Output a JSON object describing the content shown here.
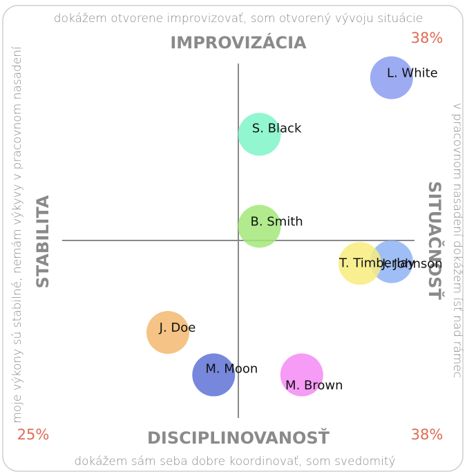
{
  "chart_data": {
    "type": "scatter",
    "annotations": {
      "top_text": "dokážem otvorene improvizovať, som otvorený vývoju situácie",
      "top_label": "IMPROVIZÁCIA",
      "bottom_label": "DISCIPLINOVANOSŤ",
      "bottom_text": "dokážem sám seba dobre koordinovať, som svedomitý",
      "left_label": "STABILITA",
      "left_text": "moje výkony sú stabilné, nemám výkyvy v pracovnom nasadení",
      "right_label": "SITUAČNOSŤ",
      "right_text": "v pracovnom nasadení dokážem ísť nad rámec",
      "top_right_pct": "38%",
      "bottom_left_pct": "25%",
      "bottom_right_pct": "38%"
    },
    "xlim": [
      -1,
      1
    ],
    "ylim": [
      -1,
      1
    ],
    "series": [
      {
        "name": "L. White",
        "color": "#8c9cf0",
        "values": [
          0.92
        ],
        "x": [
          0.87
        ]
      },
      {
        "name": "S. Black",
        "color": "#7ff5c8",
        "values": [
          0.6
        ],
        "x": [
          0.12
        ]
      },
      {
        "name": "B. Smith",
        "color": "#a3e87a",
        "values": [
          0.08
        ],
        "x": [
          0.12
        ]
      },
      {
        "name": "J. Johnson",
        "color": "#8fb3f5",
        "values": [
          -0.12
        ],
        "x": [
          0.87
        ]
      },
      {
        "name": "T. Timberlay",
        "color": "#f7ec7c",
        "values": [
          -0.13
        ],
        "x": [
          0.69
        ]
      },
      {
        "name": "J. Doe",
        "color": "#f2b870",
        "values": [
          -0.52
        ],
        "x": [
          -0.4
        ]
      },
      {
        "name": "M. Moon",
        "color": "#5e72d6",
        "values": [
          -0.76
        ],
        "x": [
          -0.14
        ]
      },
      {
        "name": "M. Brown",
        "color": "#f58af5",
        "values": [
          -0.76
        ],
        "x": [
          0.36
        ]
      }
    ]
  }
}
